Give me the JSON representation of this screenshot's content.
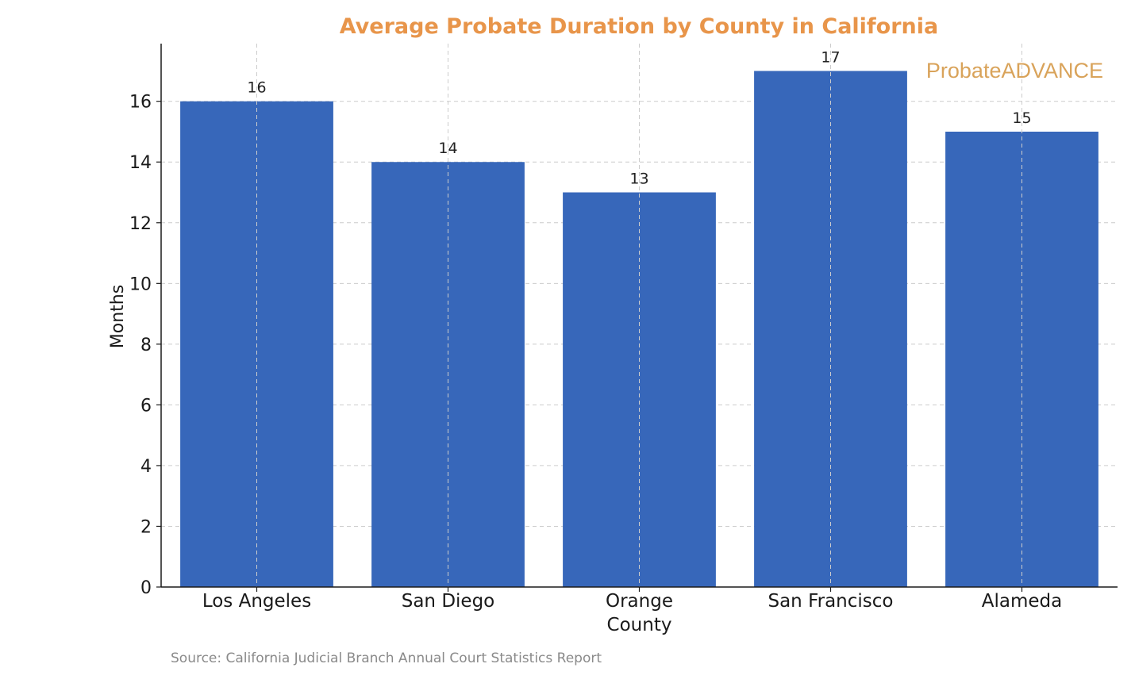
{
  "chart_data": {
    "type": "bar",
    "title": "Average Probate Duration by County in California",
    "xlabel": "",
    "ylabel": "Months",
    "categories": [
      [
        "Los Angeles"
      ],
      [
        "San Diego"
      ],
      [
        "Orange",
        "County"
      ],
      [
        "San Francisco"
      ],
      [
        "Alameda"
      ]
    ],
    "values": [
      16,
      14,
      13,
      17,
      15
    ],
    "value_labels": [
      "16",
      "14",
      "13",
      "17",
      "15"
    ],
    "ylim": [
      0,
      17.9
    ],
    "yticks": [
      0,
      2,
      4,
      6,
      8,
      10,
      12,
      14,
      16
    ],
    "grid": true,
    "bar_color": "#3767BA",
    "title_color": "#E8954A"
  },
  "logo": {
    "brand_part1": "Probate",
    "brand_part2": "ADVANCE",
    "color": "#D9A35A"
  },
  "source": "Source: California Judicial Branch Annual Court Statistics Report"
}
